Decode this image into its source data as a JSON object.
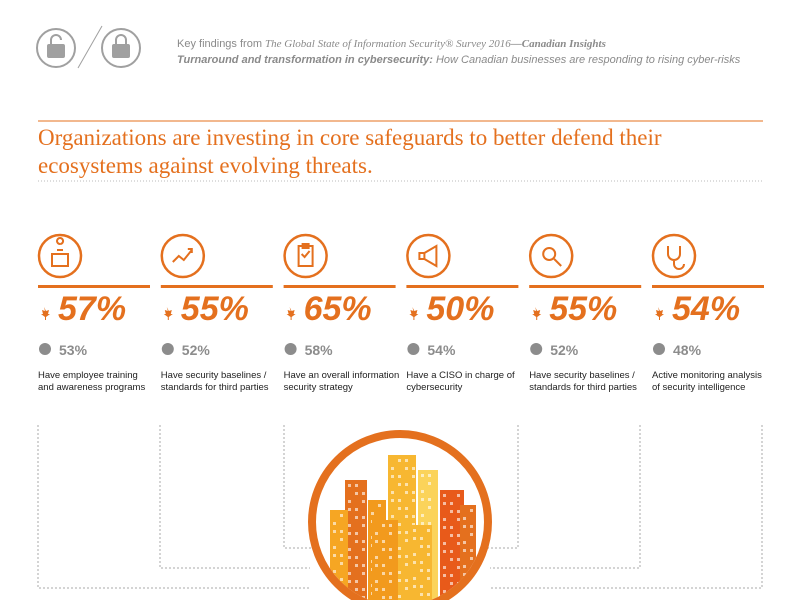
{
  "header": {
    "line1": [
      "Key findings from ",
      "The Global State of Information Security® Survey 2016",
      "—Canadian Insights"
    ],
    "line2": [
      "Turnaround and transformation in cybersecurity:",
      " How Canadian businesses are responding to rising cyber-risks"
    ]
  },
  "headline": "Organizations are investing in core safeguards to better defend their ecosystems against evolving threats.",
  "items": [
    {
      "canada": "57%",
      "global": "53%",
      "label": "Have employee training and awareness programs"
    },
    {
      "canada": "55%",
      "global": "52%",
      "label": "Have security baselines / standards for third parties"
    },
    {
      "canada": "65%",
      "global": "58%",
      "label": "Have an overall information security strategy"
    },
    {
      "canada": "50%",
      "global": "54%",
      "label": "Have a CISO in charge of cybersecurity"
    },
    {
      "canada": "55%",
      "global": "52%",
      "label": "Have security baselines / standards for third parties"
    },
    {
      "canada": "54%",
      "global": "48%",
      "label": "Active monitoring analysis of security intelligence"
    }
  ]
}
